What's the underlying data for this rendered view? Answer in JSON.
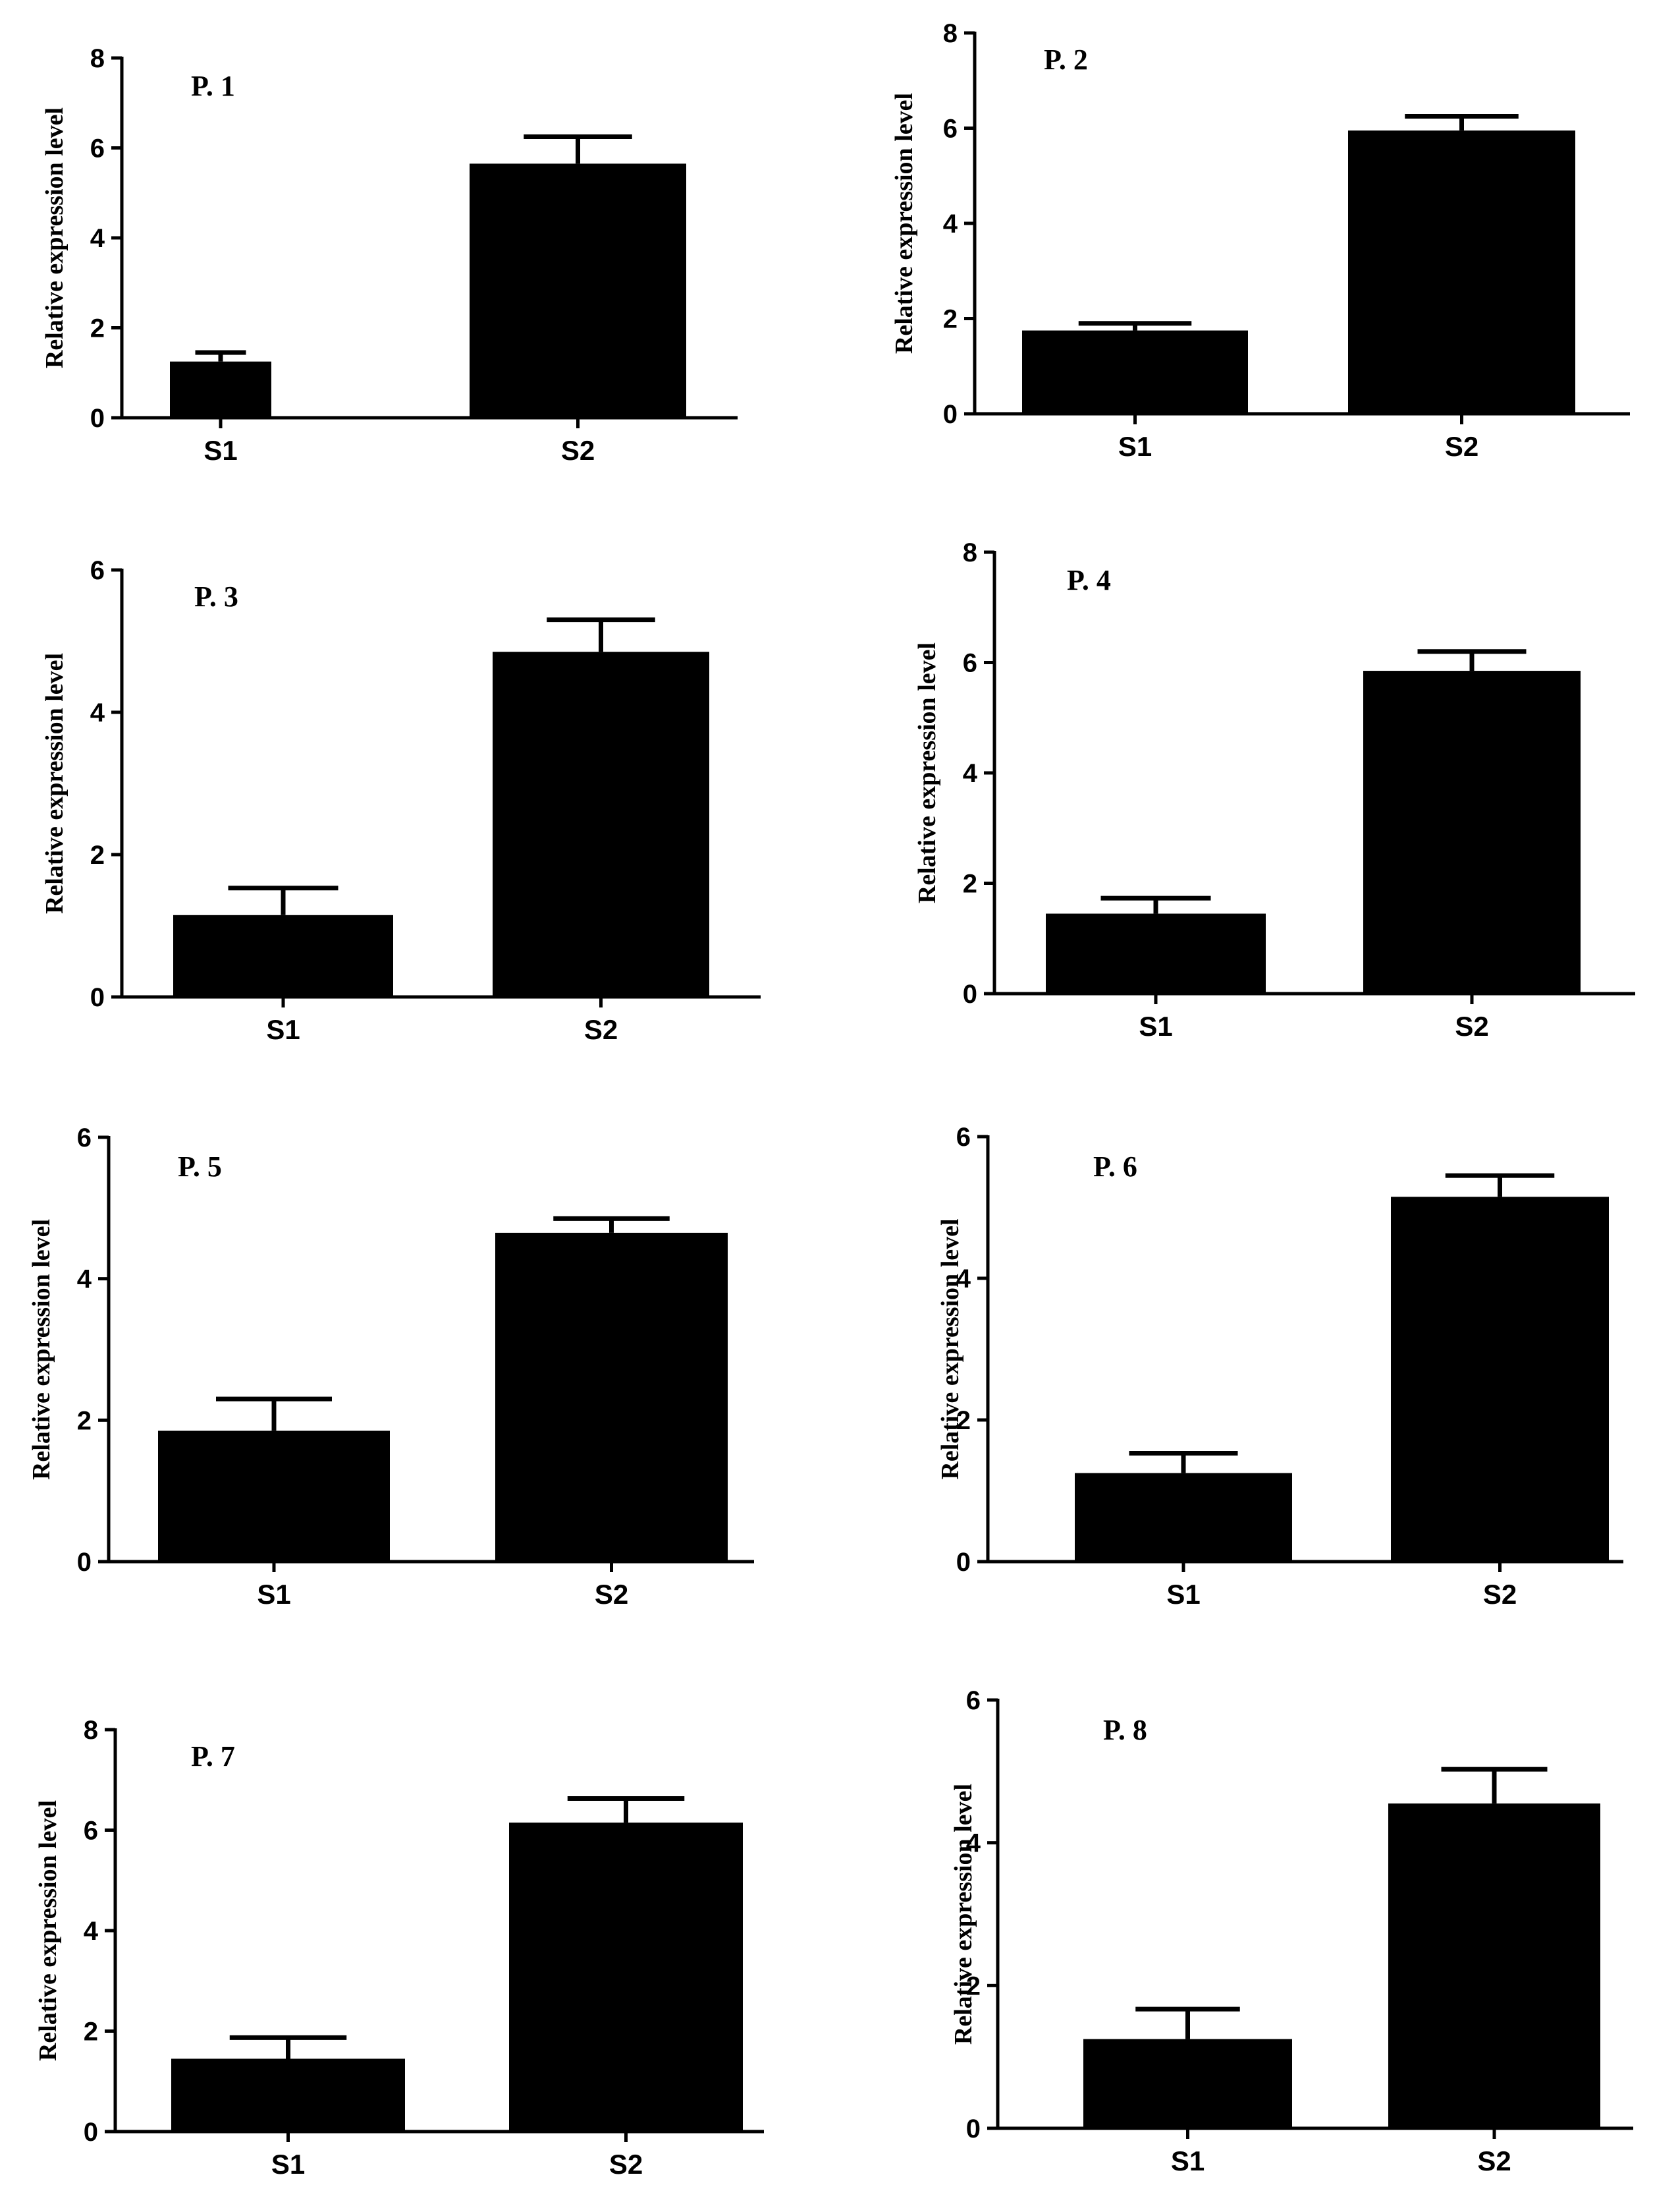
{
  "chart_data": [
    {
      "type": "bar",
      "title": "P. 1",
      "ylabel": "Relative expression level",
      "xlabel": "",
      "categories": [
        "S1",
        "S2"
      ],
      "values": [
        1.25,
        5.65
      ],
      "errors": [
        0.2,
        0.6
      ],
      "ylim": [
        0,
        8
      ],
      "yticks": [
        0,
        2,
        4,
        6,
        8
      ],
      "grid": false
    },
    {
      "type": "bar",
      "title": "P. 2",
      "ylabel": "Relative expression level",
      "xlabel": "",
      "categories": [
        "S1",
        "S2"
      ],
      "values": [
        1.75,
        5.95
      ],
      "errors": [
        0.15,
        0.3
      ],
      "ylim": [
        0,
        8
      ],
      "yticks": [
        0,
        2,
        4,
        6,
        8
      ],
      "grid": false
    },
    {
      "type": "bar",
      "title": "P. 3",
      "ylabel": "Relative expression level",
      "xlabel": "",
      "categories": [
        "S1",
        "S2"
      ],
      "values": [
        1.15,
        4.85
      ],
      "errors": [
        0.38,
        0.45
      ],
      "ylim": [
        0,
        6
      ],
      "yticks": [
        0,
        2,
        4,
        6
      ],
      "grid": false
    },
    {
      "type": "bar",
      "title": "P. 4",
      "ylabel": "Relative expression level",
      "xlabel": "",
      "categories": [
        "S1",
        "S2"
      ],
      "values": [
        1.45,
        5.85
      ],
      "errors": [
        0.28,
        0.35
      ],
      "ylim": [
        0,
        8
      ],
      "yticks": [
        0,
        2,
        4,
        6,
        8
      ],
      "grid": false
    },
    {
      "type": "bar",
      "title": "P. 5",
      "ylabel": "Relative expression level",
      "xlabel": "",
      "categories": [
        "S1",
        "S2"
      ],
      "values": [
        1.85,
        4.65
      ],
      "errors": [
        0.45,
        0.2
      ],
      "ylim": [
        0,
        6
      ],
      "yticks": [
        0,
        2,
        4,
        6
      ],
      "grid": false
    },
    {
      "type": "bar",
      "title": "P. 6",
      "ylabel": "Relative expression level",
      "xlabel": "",
      "categories": [
        "S1",
        "S2"
      ],
      "values": [
        1.25,
        5.15
      ],
      "errors": [
        0.28,
        0.3
      ],
      "ylim": [
        0,
        6
      ],
      "yticks": [
        0,
        2,
        4,
        6
      ],
      "grid": false
    },
    {
      "type": "bar",
      "title": "P. 7",
      "ylabel": "Relative expression level",
      "xlabel": "",
      "categories": [
        "S1",
        "S2"
      ],
      "values": [
        1.45,
        6.15
      ],
      "errors": [
        0.42,
        0.48
      ],
      "ylim": [
        0,
        8
      ],
      "yticks": [
        0,
        2,
        4,
        6,
        8
      ],
      "grid": false
    },
    {
      "type": "bar",
      "title": "P. 8",
      "ylabel": "Relative expression level",
      "xlabel": "",
      "categories": [
        "S1",
        "S2"
      ],
      "values": [
        1.25,
        4.55
      ],
      "errors": [
        0.42,
        0.48
      ],
      "ylim": [
        0,
        6
      ],
      "yticks": [
        0,
        2,
        4,
        6
      ],
      "grid": false
    }
  ],
  "colors": {
    "bar": "#000000",
    "axis": "#000000",
    "background": "#ffffff"
  }
}
